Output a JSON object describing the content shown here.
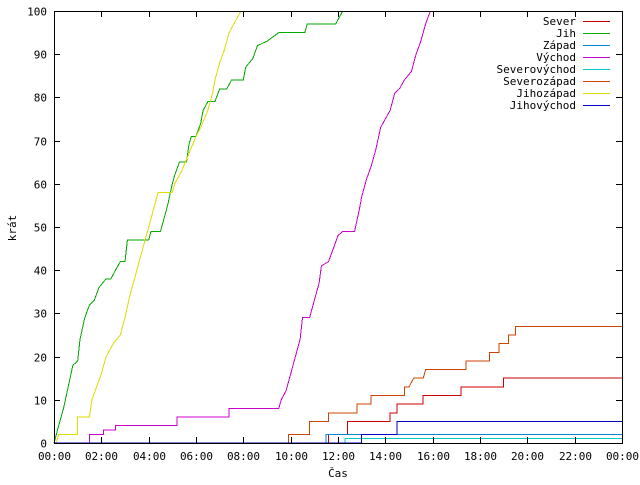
{
  "chart_data": {
    "type": "line",
    "title": "",
    "xlabel": "Čas",
    "ylabel": "krát",
    "xlim": [
      0,
      24
    ],
    "ylim": [
      0,
      100
    ],
    "x_unit": "hours",
    "grid": false,
    "legend_position": "top-right",
    "x_ticks": [
      {
        "value": 0,
        "label": "00:00"
      },
      {
        "value": 2,
        "label": "02:00"
      },
      {
        "value": 4,
        "label": "04:00"
      },
      {
        "value": 6,
        "label": "06:00"
      },
      {
        "value": 8,
        "label": "08:00"
      },
      {
        "value": 10,
        "label": "10:00"
      },
      {
        "value": 12,
        "label": "12:00"
      },
      {
        "value": 14,
        "label": "14:00"
      },
      {
        "value": 16,
        "label": "16:00"
      },
      {
        "value": 18,
        "label": "18:00"
      },
      {
        "value": 20,
        "label": "20:00"
      },
      {
        "value": 22,
        "label": "22:00"
      },
      {
        "value": 24,
        "label": "00:00"
      }
    ],
    "y_ticks": [
      0,
      10,
      20,
      30,
      40,
      50,
      60,
      70,
      80,
      90,
      100
    ],
    "series": [
      {
        "name": "Sever",
        "color": "#cc0000",
        "points": [
          [
            0,
            0
          ],
          [
            11.6,
            0
          ],
          [
            11.6,
            2
          ],
          [
            12.4,
            2
          ],
          [
            12.4,
            5
          ],
          [
            14.2,
            5
          ],
          [
            14.2,
            7
          ],
          [
            14.5,
            7
          ],
          [
            14.5,
            9
          ],
          [
            15.6,
            9
          ],
          [
            15.6,
            11
          ],
          [
            17.2,
            11
          ],
          [
            17.2,
            13
          ],
          [
            19.0,
            13
          ],
          [
            19.0,
            15
          ],
          [
            24,
            15
          ]
        ]
      },
      {
        "name": "Jih",
        "color": "#00aa00",
        "points": [
          [
            0,
            0
          ],
          [
            0.2,
            4
          ],
          [
            0.4,
            8
          ],
          [
            0.6,
            13
          ],
          [
            0.8,
            18
          ],
          [
            1.0,
            19
          ],
          [
            1.1,
            24
          ],
          [
            1.3,
            29
          ],
          [
            1.5,
            32
          ],
          [
            1.7,
            33
          ],
          [
            1.9,
            36
          ],
          [
            2.2,
            38
          ],
          [
            2.4,
            38
          ],
          [
            2.6,
            40
          ],
          [
            2.8,
            42
          ],
          [
            3.0,
            42
          ],
          [
            3.1,
            47
          ],
          [
            4.0,
            47
          ],
          [
            4.1,
            49
          ],
          [
            4.5,
            49
          ],
          [
            4.6,
            51
          ],
          [
            4.8,
            55
          ],
          [
            5.0,
            60
          ],
          [
            5.1,
            62
          ],
          [
            5.3,
            65
          ],
          [
            5.6,
            65
          ],
          [
            5.7,
            69
          ],
          [
            5.8,
            71
          ],
          [
            6.0,
            71
          ],
          [
            6.2,
            74
          ],
          [
            6.3,
            77
          ],
          [
            6.5,
            79
          ],
          [
            6.8,
            79
          ],
          [
            7.0,
            82
          ],
          [
            7.3,
            82
          ],
          [
            7.5,
            84
          ],
          [
            8.0,
            84
          ],
          [
            8.1,
            87
          ],
          [
            8.4,
            89
          ],
          [
            8.6,
            92
          ],
          [
            9.0,
            93
          ],
          [
            9.5,
            95
          ],
          [
            10.6,
            95
          ],
          [
            10.7,
            97
          ],
          [
            11.9,
            97
          ],
          [
            12.1,
            99
          ],
          [
            12.2,
            100
          ]
        ]
      },
      {
        "name": "Západ",
        "color": "#0088cc",
        "points": [
          [
            0,
            0
          ],
          [
            11.5,
            0
          ],
          [
            11.5,
            2
          ],
          [
            24,
            2
          ]
        ]
      },
      {
        "name": "Východ",
        "color": "#cc00cc",
        "points": [
          [
            0,
            0
          ],
          [
            1.5,
            0
          ],
          [
            1.5,
            2
          ],
          [
            2.1,
            2
          ],
          [
            2.1,
            3
          ],
          [
            2.6,
            3
          ],
          [
            2.6,
            4
          ],
          [
            5.2,
            4
          ],
          [
            5.2,
            6
          ],
          [
            7.4,
            6
          ],
          [
            7.4,
            8
          ],
          [
            9.5,
            8
          ],
          [
            9.6,
            10
          ],
          [
            9.8,
            12
          ],
          [
            10.0,
            16
          ],
          [
            10.2,
            20
          ],
          [
            10.4,
            24
          ],
          [
            10.5,
            29
          ],
          [
            10.8,
            29
          ],
          [
            11.0,
            33
          ],
          [
            11.2,
            37
          ],
          [
            11.3,
            41
          ],
          [
            11.6,
            42
          ],
          [
            11.8,
            45
          ],
          [
            12.0,
            48
          ],
          [
            12.2,
            49
          ],
          [
            12.7,
            49
          ],
          [
            12.9,
            54
          ],
          [
            13.0,
            57
          ],
          [
            13.2,
            61
          ],
          [
            13.4,
            64
          ],
          [
            13.6,
            68
          ],
          [
            13.8,
            73
          ],
          [
            14.0,
            75
          ],
          [
            14.2,
            77
          ],
          [
            14.4,
            81
          ],
          [
            14.6,
            82
          ],
          [
            14.8,
            84
          ],
          [
            15.1,
            86
          ],
          [
            15.3,
            90
          ],
          [
            15.5,
            93
          ],
          [
            15.7,
            97
          ],
          [
            15.9,
            100
          ]
        ]
      },
      {
        "name": "Severovýchod",
        "color": "#00cccc",
        "points": [
          [
            0,
            0
          ],
          [
            12.3,
            0
          ],
          [
            12.3,
            1
          ],
          [
            24,
            1
          ]
        ]
      },
      {
        "name": "Severozápad",
        "color": "#cc4400",
        "points": [
          [
            0,
            0
          ],
          [
            9.9,
            0
          ],
          [
            9.9,
            2
          ],
          [
            10.8,
            2
          ],
          [
            10.8,
            5
          ],
          [
            11.6,
            5
          ],
          [
            11.6,
            7
          ],
          [
            12.8,
            7
          ],
          [
            12.8,
            9
          ],
          [
            13.4,
            9
          ],
          [
            13.4,
            11
          ],
          [
            14.8,
            11
          ],
          [
            14.8,
            13
          ],
          [
            15.0,
            13
          ],
          [
            15.2,
            15
          ],
          [
            15.6,
            15
          ],
          [
            15.7,
            17
          ],
          [
            17.4,
            17
          ],
          [
            17.4,
            19
          ],
          [
            18.4,
            19
          ],
          [
            18.4,
            21
          ],
          [
            18.8,
            21
          ],
          [
            18.8,
            23
          ],
          [
            19.2,
            23
          ],
          [
            19.2,
            25
          ],
          [
            19.5,
            25
          ],
          [
            19.5,
            27
          ],
          [
            24,
            27
          ]
        ]
      },
      {
        "name": "Jihozápad",
        "color": "#dddd00",
        "points": [
          [
            0,
            0
          ],
          [
            0.1,
            0
          ],
          [
            0.2,
            2
          ],
          [
            1.0,
            2
          ],
          [
            1.0,
            6
          ],
          [
            1.5,
            6
          ],
          [
            1.6,
            10
          ],
          [
            1.8,
            13
          ],
          [
            2.0,
            16
          ],
          [
            2.2,
            20
          ],
          [
            2.5,
            23
          ],
          [
            2.8,
            25
          ],
          [
            3.0,
            29
          ],
          [
            3.2,
            34
          ],
          [
            3.4,
            38
          ],
          [
            3.6,
            42
          ],
          [
            3.8,
            46
          ],
          [
            4.0,
            50
          ],
          [
            4.2,
            54
          ],
          [
            4.4,
            58
          ],
          [
            5.0,
            58
          ],
          [
            5.1,
            60
          ],
          [
            5.4,
            63
          ],
          [
            5.7,
            67
          ],
          [
            6.0,
            71
          ],
          [
            6.2,
            73
          ],
          [
            6.5,
            77
          ],
          [
            6.7,
            81
          ],
          [
            6.8,
            84
          ],
          [
            7.0,
            88
          ],
          [
            7.2,
            91
          ],
          [
            7.4,
            95
          ],
          [
            7.7,
            98
          ],
          [
            7.9,
            100
          ]
        ]
      },
      {
        "name": "Jihovýchod",
        "color": "#0000cc",
        "points": [
          [
            0,
            0
          ],
          [
            13.0,
            0
          ],
          [
            13.0,
            2
          ],
          [
            14.5,
            2
          ],
          [
            14.5,
            5
          ],
          [
            24,
            5
          ]
        ]
      }
    ]
  }
}
